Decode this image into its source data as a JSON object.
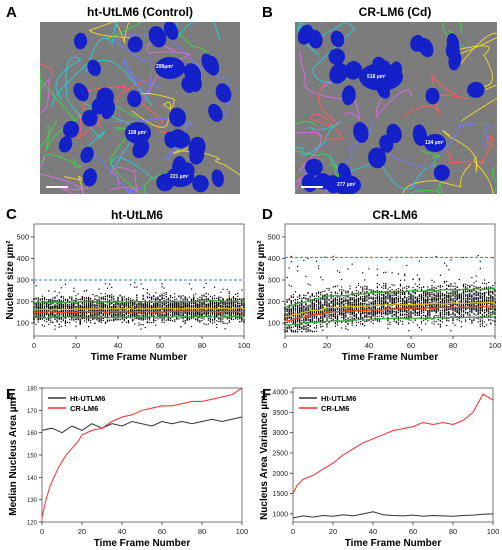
{
  "panels": {
    "A": {
      "letter": "A",
      "title": "ht-UtLM6 (Control)",
      "annotations": [
        "299µm²",
        "158 µm²",
        "221 µm²"
      ]
    },
    "B": {
      "letter": "B",
      "title": "CR-LM6 (Cd)",
      "annotations": [
        "518 µm²",
        "134 µm²",
        "277 µm²"
      ]
    },
    "C": {
      "letter": "C",
      "title": "ht-UtLM6"
    },
    "D": {
      "letter": "D",
      "title": "CR-LM6"
    },
    "E": {
      "letter": "E"
    },
    "F": {
      "letter": "F"
    }
  },
  "chart_data": [
    {
      "panel": "C",
      "type": "scatter",
      "title": "ht-UtLM6",
      "xlabel": "Time Frame Number",
      "ylabel": "Nuclear size µm²",
      "xlim": [
        0,
        100
      ],
      "ylim": [
        40,
        560
      ],
      "xticks": [
        0,
        20,
        40,
        60,
        80,
        100
      ],
      "yticks": [
        100,
        200,
        300,
        400,
        500
      ],
      "threshold_line": 300,
      "band": {
        "min": 70,
        "max": 290
      },
      "percentile_lines": [
        {
          "color": "#e8c200",
          "values_at": [
            [
              0,
              162
            ],
            [
              50,
              166
            ],
            [
              100,
              168
            ]
          ]
        },
        {
          "color": "#ff4a10",
          "values_at": [
            [
              0,
              150
            ],
            [
              50,
              152
            ],
            [
              100,
              154
            ]
          ]
        },
        {
          "color": "#34a832",
          "values_at": [
            [
              0,
              195
            ],
            [
              50,
              200
            ],
            [
              100,
              202
            ]
          ]
        },
        {
          "color": "#34a832",
          "values_at": [
            [
              0,
              125
            ],
            [
              50,
              128
            ],
            [
              100,
              130
            ]
          ]
        }
      ]
    },
    {
      "panel": "D",
      "type": "scatter",
      "title": "CR-LM6",
      "xlabel": "Time Frame Number",
      "ylabel": "Nuclear size µm²",
      "xlim": [
        0,
        100
      ],
      "ylim": [
        40,
        560
      ],
      "xticks": [
        0,
        20,
        40,
        60,
        80,
        100
      ],
      "yticks": [
        100,
        200,
        300,
        400,
        500
      ],
      "threshold_line": 405,
      "band": {
        "min": 60,
        "max": 420
      },
      "percentile_lines": [
        {
          "color": "#e8c200",
          "values_at": [
            [
              0,
              130
            ],
            [
              20,
              170
            ],
            [
              50,
              185
            ],
            [
              100,
              195
            ]
          ]
        },
        {
          "color": "#ff4a10",
          "values_at": [
            [
              0,
              110
            ],
            [
              20,
              150
            ],
            [
              50,
              165
            ],
            [
              100,
              178
            ]
          ]
        },
        {
          "color": "#34a832",
          "values_at": [
            [
              0,
              175
            ],
            [
              20,
              225
            ],
            [
              50,
              245
            ],
            [
              100,
              260
            ]
          ]
        },
        {
          "color": "#34a832",
          "values_at": [
            [
              0,
              90
            ],
            [
              20,
              110
            ],
            [
              50,
              120
            ],
            [
              100,
              128
            ]
          ]
        }
      ]
    },
    {
      "panel": "E",
      "type": "line",
      "xlabel": "Time Frame Number",
      "ylabel": "Median Nucleus Area µm²",
      "xlim": [
        0,
        100
      ],
      "ylim": [
        120,
        180
      ],
      "xticks": [
        0,
        20,
        40,
        60,
        80,
        100
      ],
      "yticks": [
        120,
        130,
        140,
        150,
        160,
        170,
        180
      ],
      "legend_position": "top-left",
      "series": [
        {
          "name": "Ht-UTLM6",
          "color": "#333333",
          "x": [
            0,
            5,
            10,
            15,
            20,
            25,
            30,
            35,
            40,
            45,
            50,
            55,
            60,
            65,
            70,
            75,
            80,
            85,
            90,
            95,
            100
          ],
          "y": [
            161,
            162,
            160,
            163,
            161,
            164,
            162,
            164,
            163,
            165,
            164,
            163,
            165,
            164,
            165,
            164,
            165,
            166,
            165,
            166,
            167
          ]
        },
        {
          "name": "CR-LM6",
          "color": "#ff2a2a",
          "x": [
            0,
            2,
            4,
            6,
            8,
            10,
            12,
            15,
            18,
            20,
            25,
            30,
            35,
            40,
            45,
            50,
            55,
            60,
            65,
            70,
            75,
            80,
            85,
            90,
            95,
            100
          ],
          "y": [
            122,
            130,
            136,
            140,
            144,
            147,
            150,
            153,
            156,
            159,
            161,
            162,
            165,
            167,
            168,
            170,
            171,
            172,
            172,
            173,
            174,
            174,
            175,
            176,
            177,
            180
          ]
        }
      ]
    },
    {
      "panel": "F",
      "type": "line",
      "xlabel": "Time Frame Number",
      "ylabel": "Nucleus Area Variance µm⁴",
      "xlim": [
        0,
        100
      ],
      "ylim": [
        800,
        4100
      ],
      "xticks": [
        0,
        20,
        40,
        60,
        80,
        100
      ],
      "yticks": [
        1000,
        1500,
        2000,
        2500,
        3000,
        3500,
        4000
      ],
      "legend_position": "top-left",
      "series": [
        {
          "name": "Ht-UTLM6",
          "color": "#333333",
          "x": [
            0,
            5,
            10,
            15,
            20,
            25,
            30,
            35,
            40,
            45,
            50,
            55,
            60,
            65,
            70,
            75,
            80,
            85,
            90,
            95,
            100
          ],
          "y": [
            900,
            950,
            920,
            960,
            940,
            980,
            950,
            1000,
            1050,
            980,
            960,
            950,
            970,
            940,
            960,
            950,
            940,
            960,
            970,
            990,
            1000
          ]
        },
        {
          "name": "CR-LM6",
          "color": "#ff2a2a",
          "x": [
            0,
            2,
            5,
            10,
            15,
            20,
            25,
            30,
            35,
            40,
            45,
            50,
            55,
            60,
            65,
            70,
            75,
            80,
            85,
            90,
            95,
            100
          ],
          "y": [
            1500,
            1700,
            1850,
            1950,
            2100,
            2250,
            2450,
            2600,
            2750,
            2850,
            2950,
            3050,
            3100,
            3150,
            3250,
            3200,
            3250,
            3200,
            3300,
            3500,
            3950,
            3800
          ]
        }
      ]
    }
  ]
}
